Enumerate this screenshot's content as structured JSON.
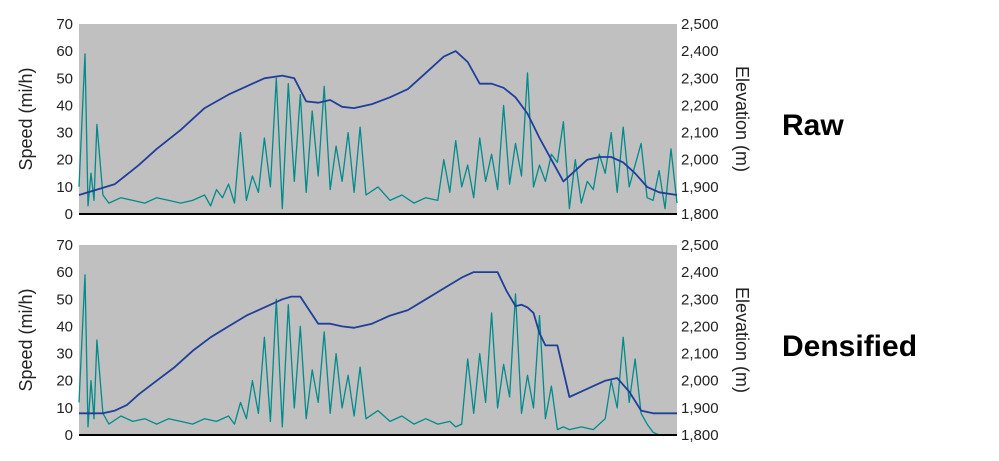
{
  "chart_data": [
    {
      "type": "line",
      "panel_label": "Raw",
      "y_left_label": "Speed (mi/h)",
      "y_right_label": "Elevation (m)",
      "y_left_lim": [
        0,
        70
      ],
      "y_right_lim": [
        1800,
        2500
      ],
      "y_left_ticks": [
        "0",
        "10",
        "20",
        "30",
        "40",
        "50",
        "60",
        "70"
      ],
      "y_right_ticks": [
        "1,800",
        "1,900",
        "2,000",
        "2,100",
        "2,200",
        "2,300",
        "2,400",
        "2,500"
      ],
      "x_range": [
        0,
        100
      ],
      "grid": false,
      "background_color": "#c0c0c0",
      "series": [
        {
          "axis": "right",
          "color": "#1f3f99",
          "x": [
            0,
            3,
            6,
            10,
            13,
            17,
            21,
            25,
            28,
            31,
            34,
            36,
            38,
            40,
            42,
            44,
            46,
            49,
            52,
            55,
            58,
            61,
            63,
            65,
            67,
            69,
            71,
            73,
            75,
            77,
            79,
            81,
            83,
            85,
            87,
            89,
            91,
            93,
            95,
            97,
            100
          ],
          "y": [
            1870,
            1890,
            1910,
            1980,
            2040,
            2110,
            2190,
            2240,
            2270,
            2300,
            2310,
            2300,
            2215,
            2210,
            2220,
            2195,
            2190,
            2205,
            2230,
            2260,
            2320,
            2380,
            2400,
            2360,
            2280,
            2280,
            2265,
            2230,
            2170,
            2080,
            2000,
            1920,
            1960,
            2000,
            2010,
            2010,
            1990,
            1950,
            1900,
            1880,
            1870
          ]
        },
        {
          "axis": "left",
          "color": "#008b8b",
          "x": [
            0,
            1,
            1.5,
            2,
            2.5,
            3,
            4,
            5,
            7,
            9,
            11,
            13,
            15,
            17,
            19,
            21,
            22,
            23,
            24,
            25,
            26,
            27,
            28,
            29,
            30,
            31,
            32,
            33,
            34,
            35,
            36,
            37,
            38,
            39,
            40,
            41,
            42,
            43,
            44,
            45,
            46,
            47,
            48,
            50,
            52,
            54,
            56,
            58,
            60,
            61,
            62,
            63,
            64,
            65,
            66,
            67,
            68,
            69,
            70,
            71,
            72,
            73,
            74,
            75,
            76,
            77,
            78,
            79,
            80,
            81,
            82,
            83,
            84,
            85,
            86,
            87,
            88,
            89,
            90,
            91,
            92,
            93,
            94,
            95,
            96,
            97,
            98,
            99,
            100
          ],
          "y": [
            10,
            59,
            3,
            15,
            5,
            33,
            7,
            4,
            6,
            5,
            4,
            6,
            5,
            4,
            5,
            7,
            3,
            9,
            6,
            11,
            4,
            30,
            5,
            14,
            8,
            28,
            10,
            50,
            2,
            48,
            12,
            44,
            8,
            38,
            14,
            47,
            9,
            25,
            12,
            30,
            8,
            32,
            7,
            10,
            5,
            7,
            4,
            6,
            5,
            20,
            8,
            27,
            10,
            18,
            6,
            28,
            12,
            22,
            9,
            40,
            11,
            26,
            14,
            52,
            10,
            18,
            12,
            22,
            19,
            34,
            2,
            20,
            4,
            12,
            9,
            22,
            15,
            30,
            8,
            32,
            10,
            18,
            26,
            6,
            5,
            16,
            2,
            24,
            4
          ]
        }
      ]
    },
    {
      "type": "line",
      "panel_label": "Densified",
      "y_left_label": "Speed (mi/h)",
      "y_right_label": "Elevation (m)",
      "y_left_lim": [
        0,
        70
      ],
      "y_right_lim": [
        1800,
        2500
      ],
      "y_left_ticks": [
        "0",
        "10",
        "20",
        "30",
        "40",
        "50",
        "60",
        "70"
      ],
      "y_right_ticks": [
        "1,800",
        "1,900",
        "2,000",
        "2,100",
        "2,200",
        "2,300",
        "2,400",
        "2,500"
      ],
      "x_range": [
        0,
        100
      ],
      "grid": false,
      "background_color": "#c0c0c0",
      "series": [
        {
          "axis": "right",
          "color": "#1f3f99",
          "x": [
            0,
            2,
            4,
            6,
            8,
            10,
            13,
            16,
            19,
            22,
            25,
            28,
            31,
            34,
            35.5,
            37,
            38.5,
            40,
            42,
            44,
            46,
            49,
            52,
            55,
            58,
            61,
            64,
            66,
            68,
            70,
            71.5,
            73,
            74,
            75,
            76,
            77,
            78,
            80,
            82,
            84,
            86,
            88,
            90,
            92,
            94,
            96,
            100
          ],
          "y": [
            1880,
            1880,
            1880,
            1890,
            1910,
            1950,
            2000,
            2050,
            2110,
            2160,
            2200,
            2240,
            2270,
            2300,
            2310,
            2310,
            2260,
            2210,
            2210,
            2200,
            2195,
            2210,
            2240,
            2260,
            2300,
            2340,
            2380,
            2400,
            2400,
            2400,
            2330,
            2275,
            2280,
            2270,
            2250,
            2175,
            2130,
            2130,
            1940,
            1960,
            1980,
            2000,
            2010,
            1960,
            1890,
            1880,
            1880
          ]
        },
        {
          "axis": "left",
          "color": "#008b8b",
          "x": [
            0,
            1,
            1.5,
            2,
            2.5,
            3,
            4,
            5,
            7,
            9,
            11,
            13,
            15,
            17,
            19,
            21,
            23,
            25,
            26,
            27,
            28,
            29,
            30,
            31,
            32,
            33,
            34,
            35,
            36,
            37,
            38,
            39,
            40,
            41,
            42,
            43,
            44,
            45,
            46,
            47,
            48,
            50,
            52,
            54,
            56,
            58,
            60,
            62,
            63,
            64,
            65,
            66,
            67,
            68,
            69,
            70,
            71,
            72,
            73,
            74,
            75,
            76,
            77,
            78,
            79,
            80,
            81,
            82,
            84,
            86,
            88,
            89,
            90,
            91,
            92,
            93,
            94,
            95,
            96,
            97,
            98,
            100
          ],
          "y": [
            12,
            59,
            3,
            20,
            6,
            35,
            8,
            4,
            7,
            5,
            6,
            4,
            6,
            5,
            4,
            6,
            5,
            7,
            4,
            12,
            6,
            20,
            8,
            36,
            5,
            50,
            3,
            48,
            10,
            40,
            6,
            24,
            12,
            38,
            8,
            30,
            10,
            22,
            7,
            25,
            6,
            9,
            5,
            7,
            4,
            6,
            4,
            5,
            3,
            4,
            28,
            8,
            30,
            12,
            45,
            10,
            26,
            14,
            52,
            8,
            22,
            10,
            44,
            6,
            18,
            2,
            3,
            2,
            3,
            2,
            6,
            20,
            10,
            36,
            12,
            28,
            8,
            4,
            1,
            0,
            0,
            0
          ]
        }
      ]
    }
  ]
}
